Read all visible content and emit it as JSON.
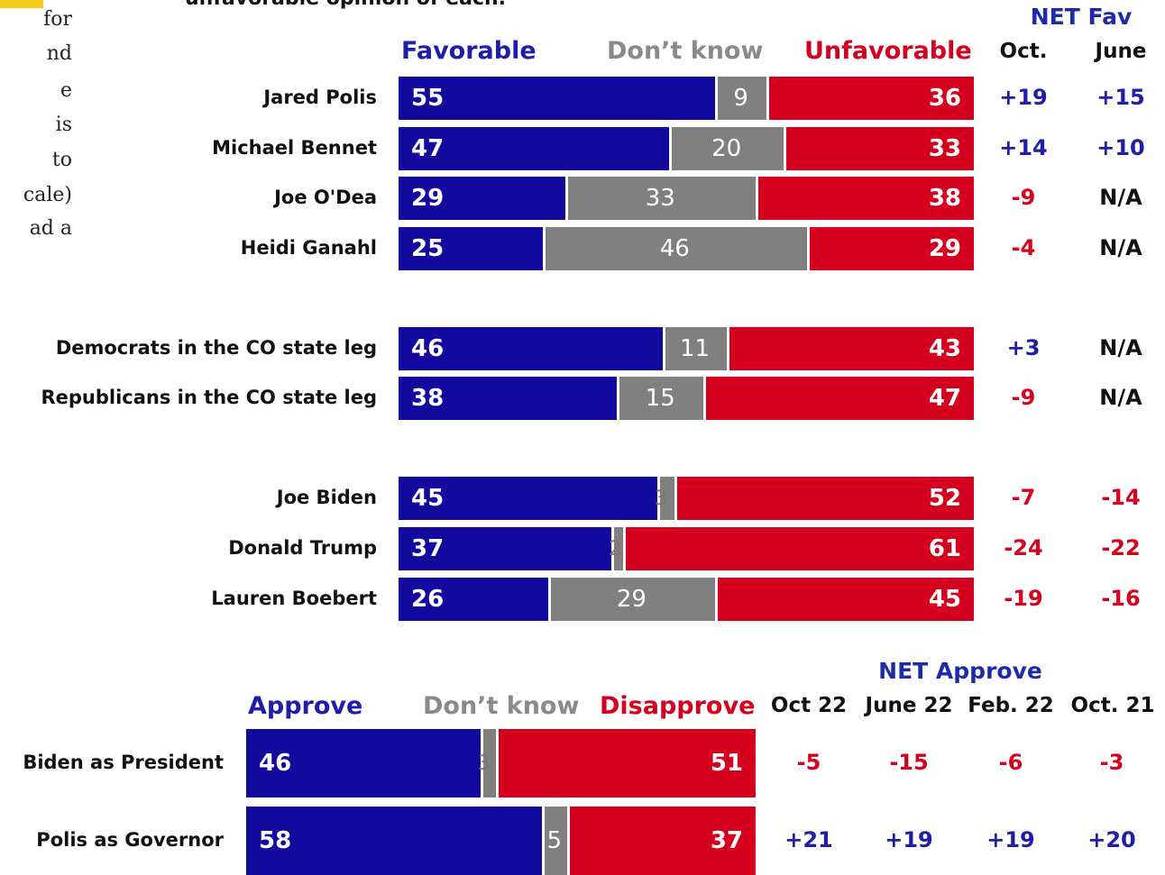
{
  "title": "unfavorable opinion of each.",
  "sidebar_lines": [
    "for",
    "nd",
    "e",
    "is",
    "to",
    "cale)",
    "ad a"
  ],
  "colors": {
    "favorable": "#12099e",
    "dont_know": "#808080",
    "unfavorable": "#d4001e",
    "positive": "#1e1ea8",
    "negative": "#d4001e",
    "na": "#111111"
  },
  "fav_section": {
    "headers": {
      "favorable": "Favorable",
      "dont_know": "Don’t know",
      "unfavorable": "Unfavorable"
    },
    "net_title": "NET Fav",
    "net_columns": [
      "Oct.",
      "June"
    ],
    "rows": [
      {
        "label": "Jared Polis",
        "favorable": 55,
        "dont_know": 9,
        "unfavorable": 36,
        "net": [
          "+19",
          "+15"
        ]
      },
      {
        "label": "Michael Bennet",
        "favorable": 47,
        "dont_know": 20,
        "unfavorable": 33,
        "net": [
          "+14",
          "+10"
        ]
      },
      {
        "label": "Joe O'Dea",
        "favorable": 29,
        "dont_know": 33,
        "unfavorable": 38,
        "net": [
          "-9",
          "N/A"
        ]
      },
      {
        "label": "Heidi Ganahl",
        "favorable": 25,
        "dont_know": 46,
        "unfavorable": 29,
        "net": [
          "-4",
          "N/A"
        ]
      },
      {
        "label": "Democrats in the CO state leg",
        "favorable": 46,
        "dont_know": 11,
        "unfavorable": 43,
        "net": [
          "+3",
          "N/A"
        ]
      },
      {
        "label": "Republicans in the CO state leg",
        "favorable": 38,
        "dont_know": 15,
        "unfavorable": 47,
        "net": [
          "-9",
          "N/A"
        ]
      },
      {
        "label": "Joe Biden",
        "favorable": 45,
        "dont_know": 3,
        "unfavorable": 52,
        "net": [
          "-7",
          "-14"
        ]
      },
      {
        "label": "Donald Trump",
        "favorable": 37,
        "dont_know": 2,
        "unfavorable": 61,
        "net": [
          "-24",
          "-22"
        ]
      },
      {
        "label": "Lauren Boebert",
        "favorable": 26,
        "dont_know": 29,
        "unfavorable": 45,
        "net": [
          "-19",
          "-16"
        ]
      }
    ]
  },
  "approve_section": {
    "headers": {
      "approve": "Approve",
      "dont_know": "Don’t know",
      "disapprove": "Disapprove"
    },
    "net_title": "NET Approve",
    "net_columns": [
      "Oct 22",
      "June 22",
      "Feb. 22",
      "Oct. 21"
    ],
    "rows": [
      {
        "label": "Biden as President",
        "approve": 46,
        "dont_know": 3,
        "disapprove": 51,
        "net": [
          "-5",
          "-15",
          "-6",
          "-3"
        ]
      },
      {
        "label": "Polis as Governor",
        "approve": 58,
        "dont_know": 5,
        "disapprove": 37,
        "net": [
          "+21",
          "+19",
          "+19",
          "+20"
        ]
      }
    ]
  },
  "chart_data": [
    {
      "type": "bar",
      "stacked": true,
      "orientation": "horizontal",
      "title": "unfavorable opinion of each.",
      "categories": [
        "Jared Polis",
        "Michael Bennet",
        "Joe O'Dea",
        "Heidi Ganahl",
        "Democrats in the CO state leg",
        "Republicans in the CO state leg",
        "Joe Biden",
        "Donald Trump",
        "Lauren Boebert"
      ],
      "series": [
        {
          "name": "Favorable",
          "values": [
            55,
            47,
            29,
            25,
            46,
            38,
            45,
            37,
            26
          ]
        },
        {
          "name": "Don’t know",
          "values": [
            9,
            20,
            33,
            46,
            11,
            15,
            3,
            2,
            29
          ]
        },
        {
          "name": "Unfavorable",
          "values": [
            36,
            33,
            38,
            29,
            43,
            47,
            52,
            61,
            45
          ]
        }
      ],
      "net_fav": {
        "Oct.": [
          "+19",
          "+14",
          "-9",
          "-4",
          "+3",
          "-9",
          "-7",
          "-24",
          "-19"
        ],
        "June": [
          "+15",
          "+10",
          "N/A",
          "N/A",
          "N/A",
          "N/A",
          "-14",
          "-22",
          "-16"
        ]
      },
      "xlim": [
        0,
        100
      ]
    },
    {
      "type": "bar",
      "stacked": true,
      "orientation": "horizontal",
      "categories": [
        "Biden as President",
        "Polis as Governor"
      ],
      "series": [
        {
          "name": "Approve",
          "values": [
            46,
            58
          ]
        },
        {
          "name": "Don’t know",
          "values": [
            3,
            5
          ]
        },
        {
          "name": "Disapprove",
          "values": [
            51,
            37
          ]
        }
      ],
      "net_approve": {
        "Oct 22": [
          "-5",
          "+21"
        ],
        "June 22": [
          "-15",
          "+19"
        ],
        "Feb. 22": [
          "-6",
          "+19"
        ],
        "Oct. 21": [
          "-3",
          "+20"
        ]
      },
      "xlim": [
        0,
        100
      ]
    }
  ]
}
